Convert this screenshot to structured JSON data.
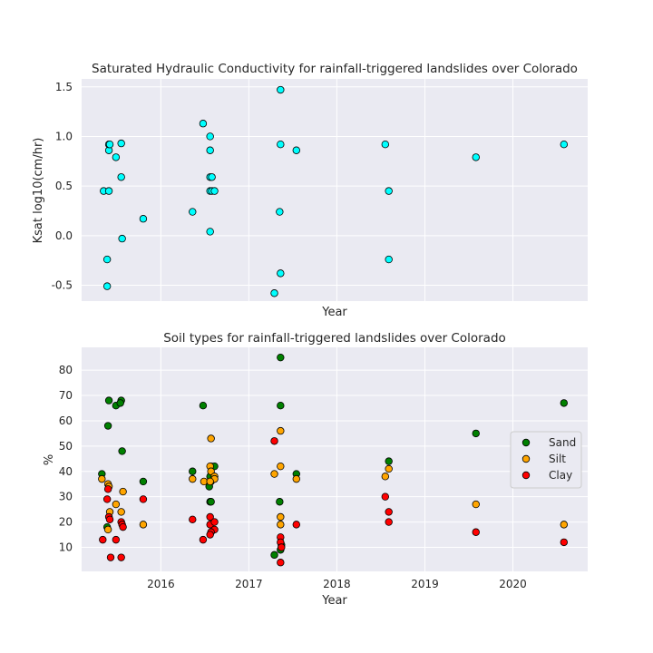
{
  "chart_data": [
    {
      "type": "scatter",
      "title": "Saturated Hydraulic Conductivity for rainfall-triggered landslides over Colorado",
      "xlabel": "Year",
      "ylabel": "Ksat log10(cm/hr)",
      "xlim": [
        2015.1,
        2020.85
      ],
      "ylim": [
        -0.66,
        1.58
      ],
      "yticks": [
        "-0.5",
        "0.0",
        "0.5",
        "1.0",
        "1.5"
      ],
      "xticks": [
        2016,
        2017,
        2018,
        2019,
        2020
      ],
      "grid": true,
      "series": [
        {
          "color": "#00ffff",
          "points": [
            [
              2015.35,
              0.45
            ],
            [
              2015.41,
              0.45
            ],
            [
              2015.39,
              -0.24
            ],
            [
              2015.39,
              -0.51
            ],
            [
              2015.41,
              0.86
            ],
            [
              2015.41,
              0.92
            ],
            [
              2015.42,
              0.92
            ],
            [
              2015.49,
              0.79
            ],
            [
              2015.55,
              0.93
            ],
            [
              2015.55,
              0.59
            ],
            [
              2015.56,
              -0.03
            ],
            [
              2015.8,
              0.17
            ],
            [
              2016.36,
              0.24
            ],
            [
              2016.48,
              1.13
            ],
            [
              2016.56,
              1.0
            ],
            [
              2016.56,
              0.86
            ],
            [
              2016.56,
              0.59
            ],
            [
              2016.58,
              0.59
            ],
            [
              2016.56,
              0.45
            ],
            [
              2016.58,
              0.45
            ],
            [
              2016.61,
              0.45
            ],
            [
              2016.56,
              0.04
            ],
            [
              2017.29,
              -0.58
            ],
            [
              2017.36,
              1.47
            ],
            [
              2017.36,
              0.92
            ],
            [
              2017.35,
              0.24
            ],
            [
              2017.36,
              -0.38
            ],
            [
              2017.54,
              0.86
            ],
            [
              2018.55,
              0.92
            ],
            [
              2018.59,
              0.45
            ],
            [
              2018.59,
              -0.24
            ],
            [
              2019.58,
              0.79
            ],
            [
              2020.58,
              0.92
            ]
          ]
        }
      ]
    },
    {
      "type": "scatter",
      "title": "Soil types for rainfall-triggered landslides over Colorado",
      "xlabel": "Year",
      "ylabel": "%",
      "xlim": [
        2015.1,
        2020.85
      ],
      "ylim": [
        0.5,
        89
      ],
      "yticks": [
        "10",
        "20",
        "30",
        "40",
        "50",
        "60",
        "70",
        "80"
      ],
      "xticks": [
        "2016",
        "2017",
        "2018",
        "2019",
        "2020"
      ],
      "grid": true,
      "legend_position": "center-right",
      "series": [
        {
          "name": "Sand",
          "color": "#008000",
          "points": [
            [
              2015.33,
              39
            ],
            [
              2015.41,
              68
            ],
            [
              2015.4,
              58
            ],
            [
              2015.49,
              66
            ],
            [
              2015.55,
              68
            ],
            [
              2015.54,
              67
            ],
            [
              2015.56,
              48
            ],
            [
              2015.39,
              18
            ],
            [
              2015.8,
              36
            ],
            [
              2016.36,
              40
            ],
            [
              2016.48,
              66
            ],
            [
              2016.57,
              42
            ],
            [
              2016.61,
              42
            ],
            [
              2016.56,
              38
            ],
            [
              2016.57,
              36
            ],
            [
              2016.55,
              34
            ],
            [
              2016.56,
              28
            ],
            [
              2016.57,
              28
            ],
            [
              2017.29,
              7
            ],
            [
              2017.36,
              85
            ],
            [
              2017.36,
              66
            ],
            [
              2017.35,
              28
            ],
            [
              2017.37,
              11
            ],
            [
              2017.36,
              9
            ],
            [
              2017.54,
              39
            ],
            [
              2018.59,
              44
            ],
            [
              2019.58,
              55
            ],
            [
              2020.58,
              67
            ]
          ]
        },
        {
          "name": "Silt",
          "color": "#ffa500",
          "points": [
            [
              2015.33,
              37
            ],
            [
              2015.4,
              35
            ],
            [
              2015.41,
              34
            ],
            [
              2015.42,
              24
            ],
            [
              2015.49,
              27
            ],
            [
              2015.55,
              24
            ],
            [
              2015.57,
              32
            ],
            [
              2015.4,
              17
            ],
            [
              2015.8,
              19
            ],
            [
              2016.36,
              37
            ],
            [
              2016.49,
              36
            ],
            [
              2016.57,
              53
            ],
            [
              2016.56,
              42
            ],
            [
              2016.57,
              40
            ],
            [
              2016.61,
              38
            ],
            [
              2016.61,
              37
            ],
            [
              2016.56,
              36
            ],
            [
              2017.29,
              39
            ],
            [
              2017.36,
              56
            ],
            [
              2017.36,
              42
            ],
            [
              2017.36,
              22
            ],
            [
              2017.36,
              19
            ],
            [
              2017.54,
              37
            ],
            [
              2018.55,
              38
            ],
            [
              2018.59,
              41
            ],
            [
              2019.58,
              27
            ],
            [
              2020.58,
              19
            ]
          ]
        },
        {
          "name": "Clay",
          "color": "#ff0000",
          "points": [
            [
              2015.34,
              13
            ],
            [
              2015.39,
              29
            ],
            [
              2015.4,
              33
            ],
            [
              2015.41,
              22
            ],
            [
              2015.42,
              21
            ],
            [
              2015.43,
              6
            ],
            [
              2015.49,
              13
            ],
            [
              2015.55,
              20
            ],
            [
              2015.56,
              19
            ],
            [
              2015.57,
              18
            ],
            [
              2015.55,
              6
            ],
            [
              2015.8,
              29
            ],
            [
              2016.36,
              21
            ],
            [
              2016.48,
              13
            ],
            [
              2016.56,
              22
            ],
            [
              2016.56,
              19
            ],
            [
              2016.61,
              20
            ],
            [
              2016.61,
              17
            ],
            [
              2016.57,
              16
            ],
            [
              2016.56,
              15
            ],
            [
              2017.29,
              52
            ],
            [
              2017.36,
              14
            ],
            [
              2017.36,
              12
            ],
            [
              2017.37,
              10
            ],
            [
              2017.36,
              4
            ],
            [
              2017.54,
              19
            ],
            [
              2018.55,
              30
            ],
            [
              2018.59,
              24
            ],
            [
              2018.59,
              20
            ],
            [
              2019.58,
              16
            ],
            [
              2020.58,
              12
            ]
          ]
        }
      ]
    }
  ]
}
